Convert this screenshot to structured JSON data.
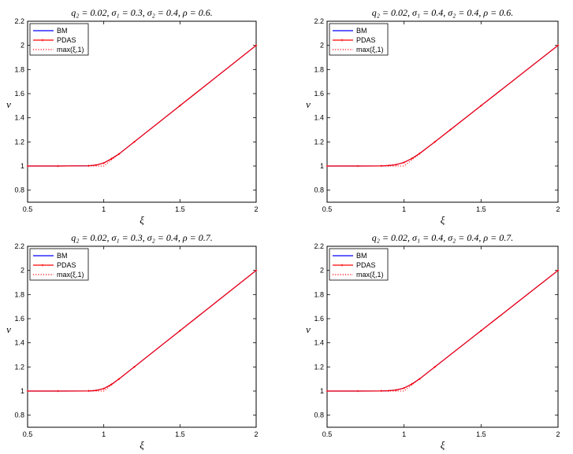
{
  "chart_data": [
    {
      "type": "line",
      "title": "q₂ = 0.02, σ₁ = 0.3, σ₂ = 0.4, ρ = 0.6.",
      "xlabel": "ξ",
      "ylabel": "v",
      "xlim": [
        0.5,
        2
      ],
      "ylim": [
        0.7,
        2.2
      ],
      "xticks": [
        "0.5",
        "1",
        "1.5",
        "2"
      ],
      "yticks": [
        "0.8",
        "1",
        "1.2",
        "1.4",
        "1.6",
        "1.8",
        "2",
        "2.2"
      ],
      "legend_position": "top-left",
      "series": [
        {
          "name": "BM",
          "color": "#0000ff",
          "style": "solid",
          "x": [
            0.5,
            0.7,
            0.9,
            0.95,
            1.0,
            1.05,
            1.1,
            1.2,
            1.5,
            2.0
          ],
          "values": [
            1.0,
            1.0,
            1.002,
            1.008,
            1.025,
            1.06,
            1.1,
            1.2,
            1.5,
            2.0
          ]
        },
        {
          "name": "PDAS",
          "color": "#ff0000",
          "style": "solid-marker",
          "x": [
            0.5,
            0.7,
            0.9,
            0.95,
            1.0,
            1.05,
            1.1,
            1.2,
            1.5,
            2.0
          ],
          "values": [
            1.0,
            1.0,
            1.002,
            1.008,
            1.025,
            1.06,
            1.1,
            1.2,
            1.5,
            2.0
          ]
        },
        {
          "name": "max(ξ,1)",
          "color": "#ff0000",
          "style": "dotted",
          "x": [
            0.5,
            1.0,
            2.0
          ],
          "values": [
            1.0,
            1.0,
            2.0
          ]
        }
      ]
    },
    {
      "type": "line",
      "title": "q₂ = 0.02, σ₁ = 0.4, σ₂ = 0.4, ρ = 0.6.",
      "xlabel": "ξ",
      "ylabel": "v",
      "xlim": [
        0.5,
        2
      ],
      "ylim": [
        0.7,
        2.2
      ],
      "xticks": [
        "0.5",
        "1",
        "1.5",
        "2"
      ],
      "yticks": [
        "0.8",
        "1",
        "1.2",
        "1.4",
        "1.6",
        "1.8",
        "2",
        "2.2"
      ],
      "legend_position": "top-left",
      "series": [
        {
          "name": "BM",
          "color": "#0000ff",
          "style": "solid",
          "x": [
            0.5,
            0.7,
            0.85,
            0.9,
            0.95,
            1.0,
            1.05,
            1.1,
            1.2,
            1.3,
            1.5,
            2.0
          ],
          "values": [
            1.0,
            1.0,
            1.001,
            1.004,
            1.012,
            1.03,
            1.062,
            1.103,
            1.2,
            1.3,
            1.5,
            2.0
          ]
        },
        {
          "name": "PDAS",
          "color": "#ff0000",
          "style": "solid-marker",
          "x": [
            0.5,
            0.7,
            0.85,
            0.9,
            0.95,
            1.0,
            1.05,
            1.1,
            1.2,
            1.3,
            1.5,
            2.0
          ],
          "values": [
            1.0,
            1.0,
            1.001,
            1.004,
            1.012,
            1.03,
            1.062,
            1.103,
            1.2,
            1.3,
            1.5,
            2.0
          ]
        },
        {
          "name": "max(ξ,1)",
          "color": "#ff0000",
          "style": "dotted",
          "x": [
            0.5,
            1.0,
            2.0
          ],
          "values": [
            1.0,
            1.0,
            2.0
          ]
        }
      ]
    },
    {
      "type": "line",
      "title": "q₂ = 0.02, σ₁ = 0.3, σ₂ = 0.4, ρ = 0.7.",
      "xlabel": "ξ",
      "ylabel": "v",
      "xlim": [
        0.5,
        2
      ],
      "ylim": [
        0.7,
        2.2
      ],
      "xticks": [
        "0.5",
        "1",
        "1.5",
        "2"
      ],
      "yticks": [
        "0.8",
        "1",
        "1.2",
        "1.4",
        "1.6",
        "1.8",
        "2",
        "2.2"
      ],
      "legend_position": "top-left",
      "series": [
        {
          "name": "BM",
          "color": "#0000ff",
          "style": "solid",
          "x": [
            0.5,
            0.7,
            0.9,
            0.95,
            1.0,
            1.05,
            1.1,
            1.2,
            1.5,
            2.0
          ],
          "values": [
            1.0,
            1.0,
            1.001,
            1.005,
            1.02,
            1.055,
            1.1,
            1.2,
            1.5,
            2.0
          ]
        },
        {
          "name": "PDAS",
          "color": "#ff0000",
          "style": "solid-marker",
          "x": [
            0.5,
            0.7,
            0.9,
            0.95,
            1.0,
            1.05,
            1.1,
            1.2,
            1.5,
            2.0
          ],
          "values": [
            1.0,
            1.0,
            1.001,
            1.005,
            1.02,
            1.055,
            1.1,
            1.2,
            1.5,
            2.0
          ]
        },
        {
          "name": "max(ξ,1)",
          "color": "#ff0000",
          "style": "dotted",
          "x": [
            0.5,
            1.0,
            2.0
          ],
          "values": [
            1.0,
            1.0,
            2.0
          ]
        }
      ]
    },
    {
      "type": "line",
      "title": "q₂ = 0.02, σ₁ = 0.4, σ₂ = 0.4, ρ = 0.7.",
      "xlabel": "ξ",
      "ylabel": "v",
      "xlim": [
        0.5,
        2
      ],
      "ylim": [
        0.7,
        2.2
      ],
      "xticks": [
        "0.5",
        "1",
        "1.5",
        "2"
      ],
      "yticks": [
        "0.8",
        "1",
        "1.2",
        "1.4",
        "1.6",
        "1.8",
        "2",
        "2.2"
      ],
      "legend_position": "top-left",
      "series": [
        {
          "name": "BM",
          "color": "#0000ff",
          "style": "solid",
          "x": [
            0.5,
            0.7,
            0.85,
            0.9,
            0.95,
            1.0,
            1.05,
            1.1,
            1.2,
            1.5,
            2.0
          ],
          "values": [
            1.0,
            1.0,
            1.001,
            1.003,
            1.009,
            1.025,
            1.058,
            1.1,
            1.2,
            1.5,
            2.0
          ]
        },
        {
          "name": "PDAS",
          "color": "#ff0000",
          "style": "solid-marker",
          "x": [
            0.5,
            0.7,
            0.85,
            0.9,
            0.95,
            1.0,
            1.05,
            1.1,
            1.2,
            1.5,
            2.0
          ],
          "values": [
            1.0,
            1.0,
            1.001,
            1.003,
            1.009,
            1.025,
            1.058,
            1.1,
            1.2,
            1.5,
            2.0
          ]
        },
        {
          "name": "max(ξ,1)",
          "color": "#ff0000",
          "style": "dotted",
          "x": [
            0.5,
            1.0,
            2.0
          ],
          "values": [
            1.0,
            1.0,
            2.0
          ]
        }
      ]
    }
  ]
}
